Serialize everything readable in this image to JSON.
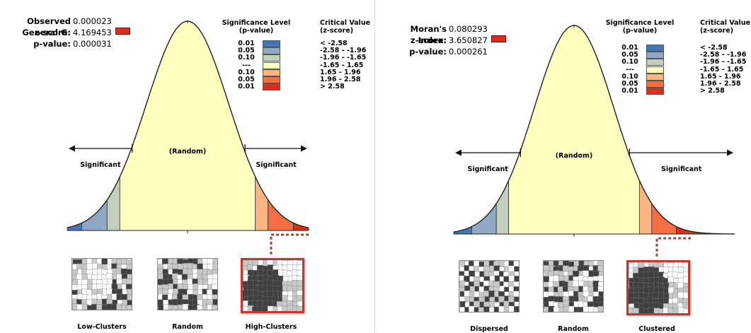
{
  "panels": [
    {
      "stats": [
        {
          "label": "Observed General G:",
          "value": "0.000023",
          "marker": false
        },
        {
          "label": "z-score:",
          "value": "4.169453",
          "marker": true
        },
        {
          "label": "p-value:",
          "value": "0.000031",
          "marker": false
        }
      ],
      "legend": {
        "header_sig": "Significance Level",
        "header_sig2": "(p-value)",
        "header_crit": "Critical Value",
        "header_crit2": "(z-score)",
        "rows": [
          {
            "p": "0.01",
            "z": "< -2.58",
            "color": "#4575b4"
          },
          {
            "p": "0.05",
            "z": "-2.58 - -1.96",
            "color": "#8ea8c6"
          },
          {
            "p": "0.10",
            "z": "-1.96 - -1.65",
            "color": "#c4cfbd"
          },
          {
            "p": "---",
            "z": "-1.65 - 1.65",
            "color": "#ffffbf"
          },
          {
            "p": "0.10",
            "z": "1.65 - 1.96",
            "color": "#fdb481"
          },
          {
            "p": "0.05",
            "z": "1.96 - 2.58",
            "color": "#f46d43"
          },
          {
            "p": "0.01",
            "z": "> 2.58",
            "color": "#d7301f"
          }
        ]
      },
      "curve_text": {
        "random": "(Random)",
        "sig_left": "Significant",
        "sig_right": "Significant"
      },
      "maps": [
        {
          "label": "Low-Clusters",
          "pattern": "low",
          "highlight": false
        },
        {
          "label": "Random",
          "pattern": "random",
          "highlight": false
        },
        {
          "label": "High-Clusters",
          "pattern": "cluster",
          "highlight": true
        }
      ]
    },
    {
      "stats": [
        {
          "label": "Moran's Index:",
          "value": "0.080293",
          "marker": false
        },
        {
          "label": "z-score:",
          "value": "3.650827",
          "marker": true
        },
        {
          "label": "p-value:",
          "value": "0.000261",
          "marker": false
        }
      ],
      "legend": {
        "header_sig": "Significance Level",
        "header_sig2": "(p-value)",
        "header_crit": "Critical Value",
        "header_crit2": "(z-score)",
        "rows": [
          {
            "p": "0.01",
            "z": "< -2.58",
            "color": "#4575b4"
          },
          {
            "p": "0.05",
            "z": "-2.58 - -1.96",
            "color": "#8ea8c6"
          },
          {
            "p": "0.10",
            "z": "-1.96 - -1.65",
            "color": "#c4cfbd"
          },
          {
            "p": "---",
            "z": "-1.65 - 1.65",
            "color": "#ffffbf"
          },
          {
            "p": "0.10",
            "z": "1.65 - 1.96",
            "color": "#fdb481"
          },
          {
            "p": "0.05",
            "z": "1.96 - 2.58",
            "color": "#f46d43"
          },
          {
            "p": "0.01",
            "z": "> 2.58",
            "color": "#d7301f"
          }
        ]
      },
      "curve_text": {
        "random": "(Random)",
        "sig_left": "Significant",
        "sig_right": "Significant"
      },
      "maps": [
        {
          "label": "Dispersed",
          "pattern": "dispersed",
          "highlight": false
        },
        {
          "label": "Random",
          "pattern": "random",
          "highlight": false
        },
        {
          "label": "Clustered",
          "pattern": "cluster",
          "highlight": true
        }
      ]
    }
  ]
}
